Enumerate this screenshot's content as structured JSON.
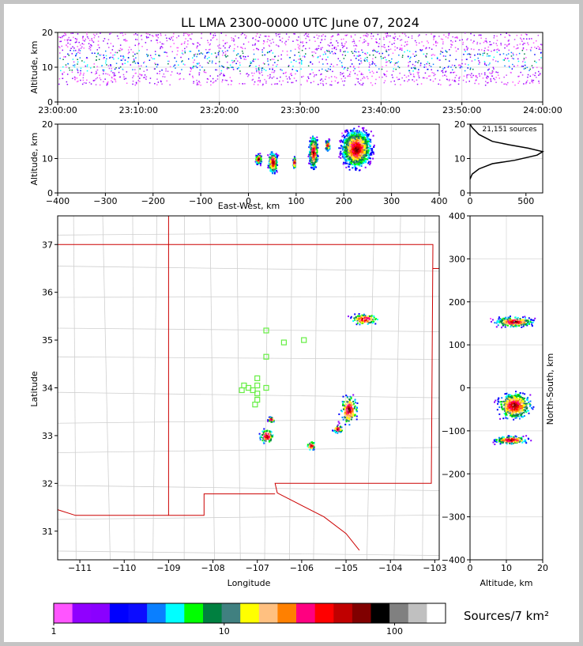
{
  "title": "LL LMA 2300-0000 UTC June 07, 2024",
  "source_count": "21,151 sources",
  "colorbar": {
    "label": "Sources/7 km²",
    "ticks": [
      "1",
      "10",
      "100"
    ],
    "colors": [
      "#ff55ff",
      "#9000ff",
      "#8a00ff",
      "#0000ff",
      "#0c0cff",
      "#0a7fff",
      "#00ffff",
      "#00ff00",
      "#008040",
      "#408080",
      "#ffff00",
      "#ffc080",
      "#ff8000",
      "#ff0080",
      "#ff0000",
      "#c00000",
      "#800000",
      "#000000",
      "#808080",
      "#c0c0c0",
      "#ffffff"
    ]
  },
  "chart_data": [
    {
      "type": "scatter",
      "name": "altitude-time",
      "xlabel": "",
      "ylabel": "Altitude, km",
      "x_ticks": [
        "23:00:00",
        "23:10:00",
        "23:20:00",
        "23:30:00",
        "23:40:00",
        "23:50:00",
        "24:00:00"
      ],
      "y_ticks": [
        "0",
        "10",
        "20"
      ],
      "xlim": [
        "23:00:00",
        "24:00:00"
      ],
      "ylim": [
        0,
        20
      ],
      "grid": true,
      "core_altitude_km": [
        9,
        15
      ]
    },
    {
      "type": "scatter",
      "name": "east-west-altitude",
      "xlabel": "East-West, km",
      "ylabel": "Altitude, km",
      "x_ticks": [
        "−400",
        "−300",
        "−200",
        "−100",
        "0",
        "100",
        "200",
        "300",
        "400"
      ],
      "y_ticks": [
        "0",
        "10",
        "20"
      ],
      "xlim": [
        -400,
        400
      ],
      "ylim": [
        0,
        20
      ],
      "grid": true,
      "clusters": [
        {
          "x": 50,
          "y": 9,
          "rx": 12,
          "ry": 4
        },
        {
          "x": 20,
          "y": 10,
          "rx": 8,
          "ry": 2
        },
        {
          "x": 95,
          "y": 9,
          "rx": 4,
          "ry": 2
        },
        {
          "x": 135,
          "y": 12,
          "rx": 12,
          "ry": 6
        },
        {
          "x": 225,
          "y": 13,
          "rx": 40,
          "ry": 7
        },
        {
          "x": 165,
          "y": 14,
          "rx": 6,
          "ry": 2
        }
      ]
    },
    {
      "type": "line",
      "name": "altitude-histogram",
      "xlabel": "",
      "ylabel": "",
      "x_ticks": [
        "0",
        "500"
      ],
      "y_ticks": [
        "0",
        "10",
        "20"
      ],
      "xlim": [
        0,
        650
      ],
      "ylim": [
        0,
        20
      ],
      "grid": true,
      "profile": [
        [
          0,
          4
        ],
        [
          20,
          5.5
        ],
        [
          80,
          7
        ],
        [
          200,
          8.5
        ],
        [
          400,
          9.5
        ],
        [
          600,
          11
        ],
        [
          650,
          12
        ],
        [
          520,
          13
        ],
        [
          350,
          14
        ],
        [
          200,
          15
        ],
        [
          80,
          17
        ],
        [
          20,
          19
        ],
        [
          0,
          20
        ]
      ]
    },
    {
      "type": "scatter",
      "name": "plan-view",
      "xlabel": "Longitude",
      "ylabel": "Latitude",
      "x_ticks": [
        "−111",
        "−110",
        "−109",
        "−108",
        "−107",
        "−106",
        "−105",
        "−104",
        "−103"
      ],
      "y_ticks": [
        "31",
        "32",
        "33",
        "34",
        "35",
        "36",
        "37"
      ],
      "xlim": [
        -111.5,
        -102.9
      ],
      "ylim": [
        30.4,
        37.6
      ],
      "grid": false,
      "clusters": [
        {
          "lon": -104.6,
          "lat": 35.45,
          "rx": 0.4,
          "ry": 0.15
        },
        {
          "lon": -104.95,
          "lat": 33.55,
          "rx": 0.25,
          "ry": 0.4
        },
        {
          "lon": -105.2,
          "lat": 33.15,
          "rx": 0.15,
          "ry": 0.1
        },
        {
          "lon": -106.8,
          "lat": 33.0,
          "rx": 0.2,
          "ry": 0.2
        },
        {
          "lon": -106.7,
          "lat": 33.35,
          "rx": 0.1,
          "ry": 0.08
        },
        {
          "lon": -105.8,
          "lat": 32.8,
          "rx": 0.12,
          "ry": 0.12
        }
      ],
      "stations": [
        [
          -106.8,
          35.2
        ],
        [
          -106.4,
          34.95
        ],
        [
          -105.95,
          35.0
        ],
        [
          -106.8,
          34.65
        ],
        [
          -107.0,
          34.2
        ],
        [
          -107.3,
          34.05
        ],
        [
          -107.0,
          34.05
        ],
        [
          -106.8,
          34.0
        ],
        [
          -107.35,
          33.95
        ],
        [
          -107.1,
          33.95
        ],
        [
          -107.0,
          33.88
        ],
        [
          -107.0,
          33.75
        ],
        [
          -107.05,
          33.65
        ],
        [
          -107.2,
          34.0
        ]
      ]
    },
    {
      "type": "scatter",
      "name": "altitude-north-south",
      "xlabel": "Altitude, km",
      "ylabel": "North-South, km",
      "x_ticks": [
        "0",
        "10",
        "20"
      ],
      "y_ticks": [
        "400",
        "300",
        "200",
        "100",
        "0",
        "−100",
        "−200",
        "−300",
        "−400"
      ],
      "xlim": [
        0,
        20
      ],
      "ylim": [
        -400,
        400
      ],
      "grid": true,
      "clusters": [
        {
          "x": 12,
          "y": 155,
          "rx": 7,
          "ry": 15
        },
        {
          "x": 12,
          "y": -40,
          "rx": 6,
          "ry": 40
        },
        {
          "x": 11,
          "y": -120,
          "rx": 6,
          "ry": 12
        }
      ]
    }
  ]
}
